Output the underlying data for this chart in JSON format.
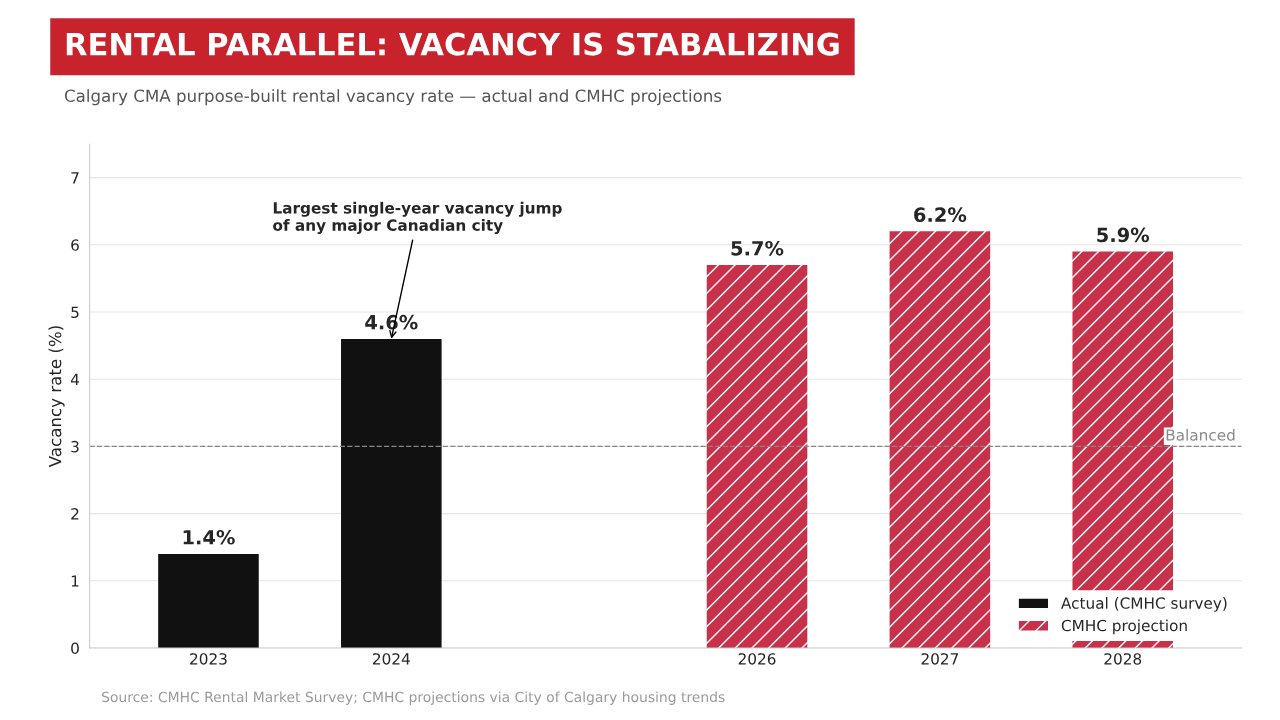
{
  "chart_data": {
    "type": "bar",
    "title": "RENTAL PARALLEL: VACANCY IS STABALIZING",
    "subtitle": "Calgary CMA purpose-built rental vacancy rate — actual and CMHC projections",
    "ylabel": "Vacancy rate (%)",
    "categories": [
      "2023",
      "2024",
      null,
      "2026",
      "2027",
      "2028"
    ],
    "series": [
      {
        "name": "Actual (CMHC survey)",
        "color": "#111111",
        "values": [
          1.4,
          4.6,
          null,
          null,
          null,
          null
        ]
      },
      {
        "name": "CMHC projection",
        "color": "#c8314a",
        "values": [
          null,
          null,
          null,
          5.7,
          6.2,
          5.9
        ]
      }
    ],
    "value_labels": [
      "1.4%",
      "4.6%",
      null,
      "5.7%",
      "6.2%",
      "5.9%"
    ],
    "ylim": [
      0,
      7.5
    ],
    "yticks": [
      0,
      1,
      2,
      3,
      4,
      5,
      6,
      7
    ],
    "grid": "y",
    "legend": "bottom right",
    "ref_lines": [
      {
        "axis": "y",
        "value": 3,
        "label": "Balanced",
        "color": "#888888",
        "line_style": "dashed"
      }
    ],
    "annotations": [
      {
        "text": "Largest single-year vacancy jump\nof any major Canadian city",
        "x": "2024",
        "y": 4.6
      },
      "Source: CMHC Rental Market Survey; CMHC projections via City of Calgary housing trends"
    ]
  }
}
